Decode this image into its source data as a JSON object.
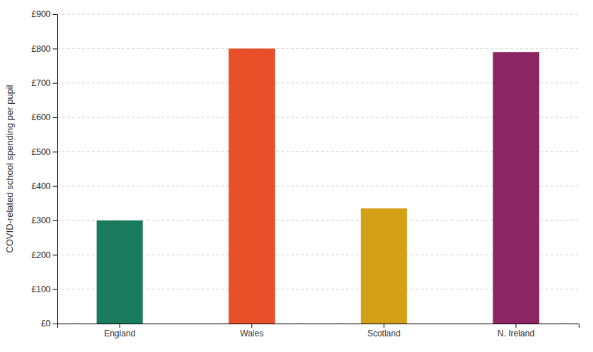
{
  "chart_data": {
    "type": "bar",
    "categories": [
      "England",
      "Wales",
      "Scotland",
      "N. Ireland"
    ],
    "values": [
      300,
      800,
      335,
      790
    ],
    "colors": [
      "#1a7a5e",
      "#e8502a",
      "#d4a017",
      "#8b2662"
    ],
    "ylabel": "COVID-related school spending per pupil",
    "ylim": [
      0,
      900
    ],
    "yticks": [
      {
        "value": 0,
        "label": "£0"
      },
      {
        "value": 100,
        "label": "£100"
      },
      {
        "value": 200,
        "label": "£200"
      },
      {
        "value": 300,
        "label": "£300"
      },
      {
        "value": 400,
        "label": "£400"
      },
      {
        "value": 500,
        "label": "£500"
      },
      {
        "value": 600,
        "label": "£600"
      },
      {
        "value": 700,
        "label": "£700"
      },
      {
        "value": 800,
        "label": "£800"
      },
      {
        "value": 900,
        "label": "£900"
      }
    ],
    "grid": true
  }
}
